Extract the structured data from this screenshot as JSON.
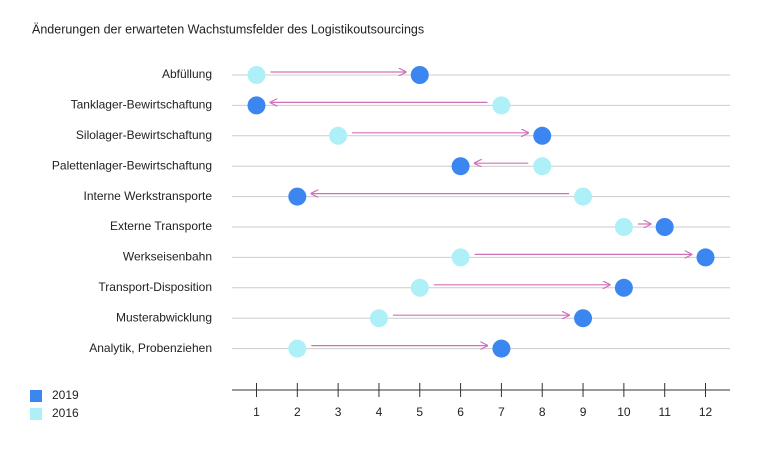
{
  "chart_data": {
    "type": "dumbbell",
    "title": "Änderungen der erwarteten Wachstumsfelder des Logistikoutsourcings",
    "categories": [
      "Abfüllung",
      "Tanklager-Bewirtschaftung",
      "Silolager-Bewirtschaftung",
      "Palettenlager-Bewirtschaftung",
      "Interne Werkstransporte",
      "Externe Transporte",
      "Werkseisenbahn",
      "Transport-Disposition",
      "Musterabwicklung",
      "Analytik, Probenziehen"
    ],
    "series": [
      {
        "name": "2019",
        "color": "#3b86f0",
        "values": [
          5,
          1,
          8,
          6,
          2,
          11,
          12,
          10,
          9,
          7
        ]
      },
      {
        "name": "2016",
        "color": "#aef0f8",
        "values": [
          1,
          7,
          3,
          8,
          9,
          10,
          6,
          5,
          4,
          2
        ]
      }
    ],
    "arrow_color": "#d070b8",
    "xlim": [
      0.4,
      12.6
    ],
    "xticks": [
      1,
      2,
      3,
      4,
      5,
      6,
      7,
      8,
      9,
      10,
      11,
      12
    ],
    "grid": true
  }
}
